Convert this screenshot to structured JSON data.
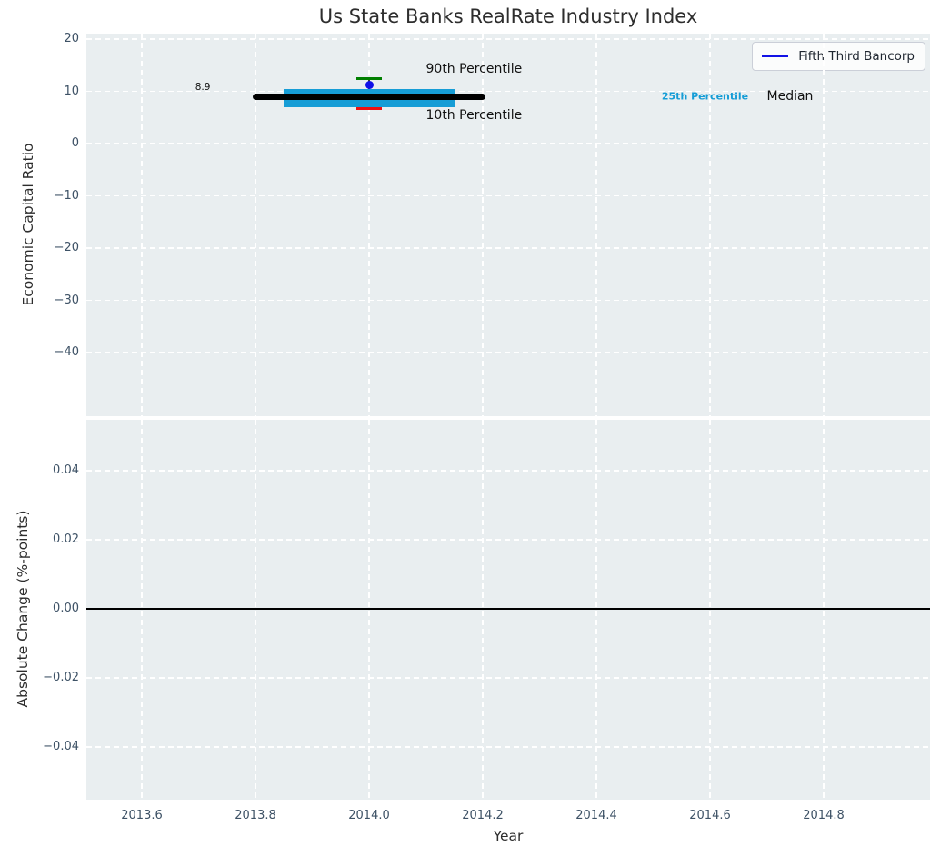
{
  "figure": {
    "title": "Us State Banks RealRate Industry Index"
  },
  "chart_data": {
    "type": "errorbar",
    "title": "Us State Banks RealRate Industry Index",
    "xlabel": "Year",
    "xlim": [
      2013.5,
      2014.99
    ],
    "x_ticks": {
      "values": [
        2013.6,
        2013.8,
        2014.0,
        2014.2,
        2014.4,
        2014.6,
        2014.8
      ],
      "labels": [
        "2013.6",
        "2013.8",
        "2014.0",
        "2014.2",
        "2014.4",
        "2014.6",
        "2014.8"
      ]
    },
    "grid": "white dashed on light gray panel",
    "panel_background": "#e9eef0",
    "top_plot": {
      "ylabel": "Economic Capital Ratio",
      "ylim": [
        -52,
        21
      ],
      "y_ticks": {
        "values": [
          20,
          10,
          0,
          -10,
          -20,
          -30,
          -40
        ],
        "labels": [
          "20",
          "10",
          "0",
          "−10",
          "−20",
          "−30",
          "−40"
        ]
      },
      "industry_index": {
        "year": 2014.0,
        "median": 8.9,
        "median_label": "8.9",
        "median_span": [
          2013.795,
          2014.205
        ],
        "p25": 7.0,
        "p75": 10.4,
        "iqr_band_span": [
          2013.85,
          2014.15
        ],
        "p90": 12.5,
        "p10": 6.7,
        "colors": {
          "median": "#000000",
          "iqr_band": "#169dd6",
          "p90_cap": "#007f00",
          "p10_cap": "#f01010",
          "whisisker_note": "thin dark whisker between caps",
          "whisker": "#3a3a3a"
        }
      },
      "company_point": {
        "name": "Fifth Third Bancorp",
        "year": 2014.0,
        "value": 11.2,
        "color": "#0f0fe8"
      },
      "legend": {
        "label": "Fifth Third Bancorp",
        "line_color": "#1212e6"
      },
      "annotations": [
        {
          "text": "90th Percentile",
          "x": 2014.1,
          "y": 14.2,
          "color": "#111111",
          "size": 14,
          "bold": false
        },
        {
          "text": "10th Percentile",
          "x": 2014.1,
          "y": 5.4,
          "color": "#111111",
          "size": 14,
          "bold": false
        },
        {
          "text": "25th Percentile",
          "x": 2014.515,
          "y": 9.0,
          "color": "#169dd6",
          "size": 11,
          "bold": true
        },
        {
          "text": "Median",
          "x": 2014.7,
          "y": 9.05,
          "color": "#111111",
          "size": 14,
          "bold": false
        },
        {
          "text": "8.9",
          "x": 2013.694,
          "y": 10.7,
          "color": "#111111",
          "size": 10.5,
          "bold": false
        }
      ]
    },
    "bottom_plot": {
      "ylabel": "Absolute Change (%-points)",
      "ylim": [
        -0.055,
        0.055
      ],
      "y_ticks": {
        "values": [
          0.04,
          0.02,
          0.0,
          -0.02,
          -0.04
        ],
        "labels": [
          "0.04",
          "0.02",
          "0.00",
          "−0.02",
          "−0.04"
        ]
      },
      "zero_line": {
        "value": 0.0,
        "color": "#000000"
      }
    }
  }
}
